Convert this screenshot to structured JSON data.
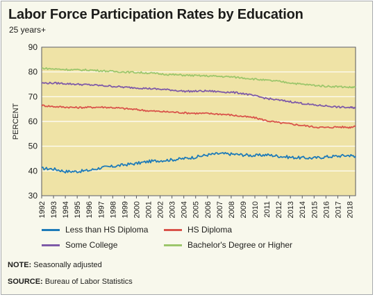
{
  "title": "Labor Force Participation Rates by Education",
  "subtitle": "25 years+",
  "note_label": "NOTE:",
  "note_text": " Seasonally adjusted",
  "source_label": "SOURCE:",
  "source_text": " Bureau of Labor Statistics",
  "colors": {
    "plot_background": "#efe3a6",
    "grid": "#ffffff",
    "less_than_hs": "#1d7ab8",
    "hs_diploma": "#d9534a",
    "some_college": "#7e5aa8",
    "bachelors": "#9cc66b"
  },
  "chart_data": {
    "type": "line",
    "title": "Labor Force Participation Rates by Education",
    "subtitle": "25 years+",
    "ylabel": "PERCENT",
    "xlabel": "",
    "ylim": [
      30,
      90
    ],
    "yticks": [
      30,
      40,
      50,
      60,
      70,
      80,
      90
    ],
    "xlim": [
      1992,
      2018.5
    ],
    "xticks": [
      "1992",
      "1993",
      "1994",
      "1995",
      "1996",
      "1997",
      "1998",
      "1999",
      "2000",
      "2001",
      "2002",
      "2003",
      "2004",
      "2005",
      "2006",
      "2007",
      "2008",
      "2009",
      "2010",
      "2011",
      "2012",
      "2013",
      "2014",
      "2015",
      "2016",
      "2017",
      "2018"
    ],
    "grid": "horizontal",
    "legend_position": "bottom",
    "x": [
      1992,
      1993,
      1994,
      1995,
      1996,
      1997,
      1998,
      1999,
      2000,
      2001,
      2002,
      2003,
      2004,
      2005,
      2006,
      2007,
      2008,
      2009,
      2010,
      2011,
      2012,
      2013,
      2014,
      2015,
      2016,
      2017,
      2018,
      2018.5
    ],
    "series": [
      {
        "name": "Less than HS Diploma",
        "color_key": "less_than_hs",
        "values": [
          41.0,
          40.8,
          39.8,
          39.8,
          40.2,
          41.3,
          41.8,
          42.5,
          43.0,
          43.8,
          44.2,
          44.5,
          45.0,
          45.6,
          46.5,
          47.0,
          46.8,
          46.5,
          46.2,
          46.5,
          46.0,
          45.5,
          45.3,
          45.2,
          45.7,
          46.0,
          46.3,
          46.0
        ]
      },
      {
        "name": "HS Diploma",
        "color_key": "hs_diploma",
        "values": [
          66.5,
          66.0,
          65.8,
          65.6,
          65.7,
          65.8,
          65.6,
          65.2,
          64.8,
          64.3,
          64.0,
          63.8,
          63.5,
          63.3,
          63.2,
          63.0,
          62.6,
          62.0,
          61.5,
          60.3,
          59.5,
          59.0,
          58.4,
          57.8,
          57.5,
          57.8,
          57.6,
          58.2
        ]
      },
      {
        "name": "Some College",
        "color_key": "some_college",
        "values": [
          75.5,
          75.5,
          75.3,
          75.0,
          74.8,
          74.5,
          74.2,
          73.8,
          73.6,
          73.3,
          73.0,
          72.7,
          72.2,
          72.2,
          72.3,
          72.0,
          71.8,
          71.3,
          70.3,
          69.3,
          68.6,
          68.0,
          67.3,
          66.6,
          66.3,
          65.8,
          65.6,
          65.6
        ]
      },
      {
        "name": "Bachelor's Degree or Higher",
        "color_key": "bachelors",
        "values": [
          81.5,
          81.2,
          81.0,
          80.8,
          80.8,
          80.5,
          80.2,
          80.0,
          79.8,
          79.6,
          79.2,
          78.9,
          78.7,
          78.5,
          78.4,
          78.2,
          78.0,
          77.6,
          77.1,
          76.6,
          76.2,
          75.6,
          75.0,
          74.6,
          74.2,
          74.1,
          73.8,
          73.8
        ]
      }
    ]
  }
}
